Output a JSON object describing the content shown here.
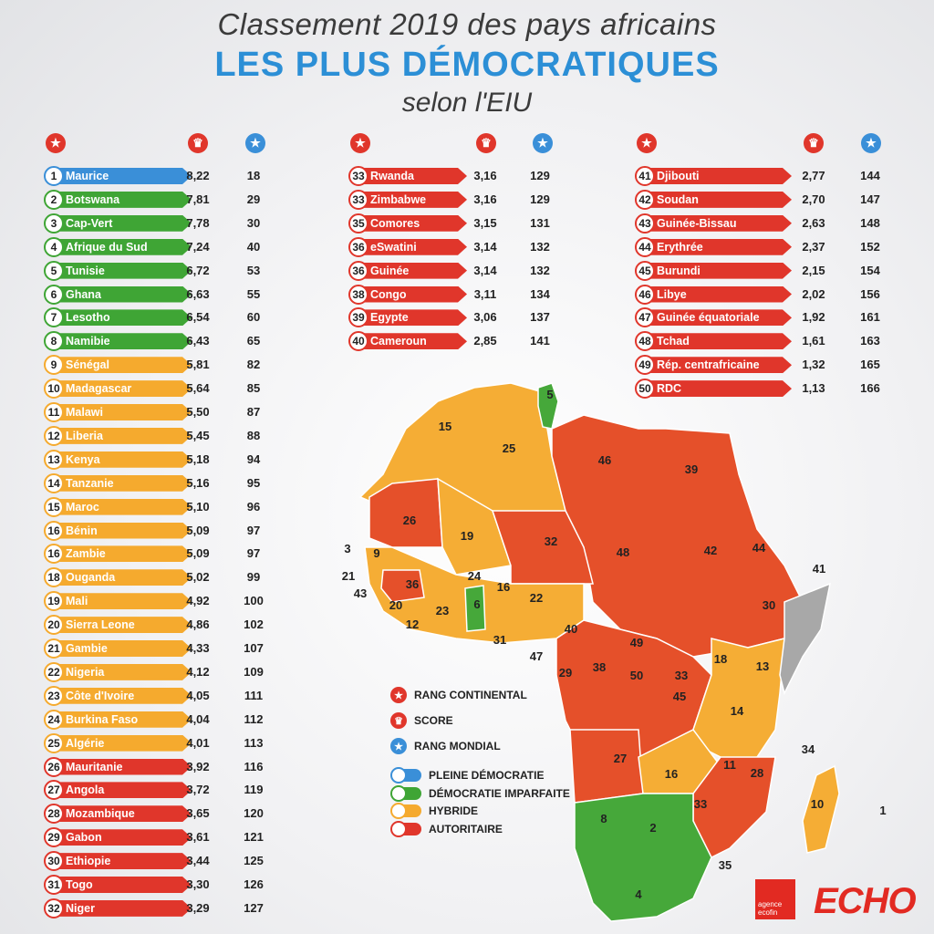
{
  "header": {
    "line1": "Classement 2019 des pays africains",
    "line2": "LES PLUS DÉMOCRATIQUES",
    "line3": "selon l'EIU"
  },
  "colors": {
    "pleine": "#3a8fd8",
    "imparfaite": "#3fa535",
    "hybride": "#f5aa2e",
    "autoritaire": "#e0362b",
    "map_autoritaire": "#e5502a",
    "map_hybride": "#f5ad35",
    "map_imparfaite": "#46a83a",
    "map_nodata": "#a8a8a8"
  },
  "legend": [
    {
      "icon": "star-icon",
      "label": "RANG CONTINENTAL"
    },
    {
      "icon": "trophy-icon",
      "label": "SCORE"
    },
    {
      "icon": "star-icon",
      "label": "RANG MONDIAL"
    }
  ],
  "categories": [
    {
      "key": "pleine",
      "label": "PLEINE DÉMOCRATIE"
    },
    {
      "key": "imparfaite",
      "label": "DÉMOCRATIE IMPARFAITE"
    },
    {
      "key": "hybride",
      "label": "HYBRIDE"
    },
    {
      "key": "autoritaire",
      "label": "AUTORITAIRE"
    }
  ],
  "chart_data": {
    "type": "table",
    "columns": [
      "rang_continental",
      "pays",
      "score",
      "rang_mondial"
    ],
    "rows": [
      {
        "r": "1",
        "name": "Maurice",
        "score": "8,22",
        "world": "18",
        "cat": "pleine"
      },
      {
        "r": "2",
        "name": "Botswana",
        "score": "7,81",
        "world": "29",
        "cat": "imparfaite"
      },
      {
        "r": "3",
        "name": "Cap-Vert",
        "score": "7,78",
        "world": "30",
        "cat": "imparfaite"
      },
      {
        "r": "4",
        "name": "Afrique du Sud",
        "score": "7,24",
        "world": "40",
        "cat": "imparfaite"
      },
      {
        "r": "5",
        "name": "Tunisie",
        "score": "6,72",
        "world": "53",
        "cat": "imparfaite"
      },
      {
        "r": "6",
        "name": "Ghana",
        "score": "6,63",
        "world": "55",
        "cat": "imparfaite"
      },
      {
        "r": "7",
        "name": "Lesotho",
        "score": "6,54",
        "world": "60",
        "cat": "imparfaite"
      },
      {
        "r": "8",
        "name": "Namibie",
        "score": "6,43",
        "world": "65",
        "cat": "imparfaite"
      },
      {
        "r": "9",
        "name": "Sénégal",
        "score": "5,81",
        "world": "82",
        "cat": "hybride"
      },
      {
        "r": "10",
        "name": "Madagascar",
        "score": "5,64",
        "world": "85",
        "cat": "hybride"
      },
      {
        "r": "11",
        "name": "Malawi",
        "score": "5,50",
        "world": "87",
        "cat": "hybride"
      },
      {
        "r": "12",
        "name": "Liberia",
        "score": "5,45",
        "world": "88",
        "cat": "hybride"
      },
      {
        "r": "13",
        "name": "Kenya",
        "score": "5,18",
        "world": "94",
        "cat": "hybride"
      },
      {
        "r": "14",
        "name": "Tanzanie",
        "score": "5,16",
        "world": "95",
        "cat": "hybride"
      },
      {
        "r": "15",
        "name": "Maroc",
        "score": "5,10",
        "world": "96",
        "cat": "hybride"
      },
      {
        "r": "16",
        "name": "Bénin",
        "score": "5,09",
        "world": "97",
        "cat": "hybride"
      },
      {
        "r": "16",
        "name": "Zambie",
        "score": "5,09",
        "world": "97",
        "cat": "hybride"
      },
      {
        "r": "18",
        "name": "Ouganda",
        "score": "5,02",
        "world": "99",
        "cat": "hybride"
      },
      {
        "r": "19",
        "name": "Mali",
        "score": "4,92",
        "world": "100",
        "cat": "hybride"
      },
      {
        "r": "20",
        "name": "Sierra Leone",
        "score": "4,86",
        "world": "102",
        "cat": "hybride"
      },
      {
        "r": "21",
        "name": "Gambie",
        "score": "4,33",
        "world": "107",
        "cat": "hybride"
      },
      {
        "r": "22",
        "name": "Nigeria",
        "score": "4,12",
        "world": "109",
        "cat": "hybride"
      },
      {
        "r": "23",
        "name": "Côte d'Ivoire",
        "score": "4,05",
        "world": "111",
        "cat": "hybride"
      },
      {
        "r": "24",
        "name": "Burkina Faso",
        "score": "4,04",
        "world": "112",
        "cat": "hybride"
      },
      {
        "r": "25",
        "name": "Algérie",
        "score": "4,01",
        "world": "113",
        "cat": "hybride"
      },
      {
        "r": "26",
        "name": "Mauritanie",
        "score": "3,92",
        "world": "116",
        "cat": "autoritaire"
      },
      {
        "r": "27",
        "name": "Angola",
        "score": "3,72",
        "world": "119",
        "cat": "autoritaire"
      },
      {
        "r": "28",
        "name": "Mozambique",
        "score": "3,65",
        "world": "120",
        "cat": "autoritaire"
      },
      {
        "r": "29",
        "name": "Gabon",
        "score": "3,61",
        "world": "121",
        "cat": "autoritaire"
      },
      {
        "r": "30",
        "name": "Ethiopie",
        "score": "3,44",
        "world": "125",
        "cat": "autoritaire"
      },
      {
        "r": "31",
        "name": "Togo",
        "score": "3,30",
        "world": "126",
        "cat": "autoritaire"
      },
      {
        "r": "32",
        "name": "Niger",
        "score": "3,29",
        "world": "127",
        "cat": "autoritaire"
      },
      {
        "r": "33",
        "name": "Rwanda",
        "score": "3,16",
        "world": "129",
        "cat": "autoritaire"
      },
      {
        "r": "33",
        "name": "Zimbabwe",
        "score": "3,16",
        "world": "129",
        "cat": "autoritaire"
      },
      {
        "r": "35",
        "name": "Comores",
        "score": "3,15",
        "world": "131",
        "cat": "autoritaire"
      },
      {
        "r": "36",
        "name": "eSwatini",
        "score": "3,14",
        "world": "132",
        "cat": "autoritaire"
      },
      {
        "r": "36",
        "name": "Guinée",
        "score": "3,14",
        "world": "132",
        "cat": "autoritaire"
      },
      {
        "r": "38",
        "name": "Congo",
        "score": "3,11",
        "world": "134",
        "cat": "autoritaire"
      },
      {
        "r": "39",
        "name": "Egypte",
        "score": "3,06",
        "world": "137",
        "cat": "autoritaire"
      },
      {
        "r": "40",
        "name": "Cameroun",
        "score": "2,85",
        "world": "141",
        "cat": "autoritaire"
      },
      {
        "r": "41",
        "name": "Djibouti",
        "score": "2,77",
        "world": "144",
        "cat": "autoritaire"
      },
      {
        "r": "42",
        "name": "Soudan",
        "score": "2,70",
        "world": "147",
        "cat": "autoritaire"
      },
      {
        "r": "43",
        "name": "Guinée-Bissau",
        "score": "2,63",
        "world": "148",
        "cat": "autoritaire"
      },
      {
        "r": "44",
        "name": "Erythrée",
        "score": "2,37",
        "world": "152",
        "cat": "autoritaire"
      },
      {
        "r": "45",
        "name": "Burundi",
        "score": "2,15",
        "world": "154",
        "cat": "autoritaire"
      },
      {
        "r": "46",
        "name": "Libye",
        "score": "2,02",
        "world": "156",
        "cat": "autoritaire"
      },
      {
        "r": "47",
        "name": "Guinée équatoriale",
        "score": "1,92",
        "world": "161",
        "cat": "autoritaire"
      },
      {
        "r": "48",
        "name": "Tchad",
        "score": "1,61",
        "world": "163",
        "cat": "autoritaire"
      },
      {
        "r": "49",
        "name": "Rép. centrafricaine",
        "score": "1,32",
        "world": "165",
        "cat": "autoritaire"
      },
      {
        "r": "50",
        "name": "RDC",
        "score": "1,13",
        "world": "166",
        "cat": "autoritaire"
      }
    ]
  },
  "map_labels": [
    "5",
    "15",
    "25",
    "46",
    "39",
    "26",
    "19",
    "32",
    "48",
    "42",
    "44",
    "41",
    "3",
    "9",
    "21",
    "43",
    "36",
    "24",
    "16",
    "6",
    "22",
    "20",
    "12",
    "23",
    "31",
    "40",
    "30",
    "47",
    "29",
    "38",
    "50",
    "49",
    "33",
    "45",
    "18",
    "13",
    "14",
    "11",
    "27",
    "16",
    "28",
    "34",
    "10",
    "33",
    "8",
    "2",
    "35",
    "4",
    "1"
  ],
  "logos": {
    "agence": "agence ecofin",
    "echo": "ECHO"
  }
}
